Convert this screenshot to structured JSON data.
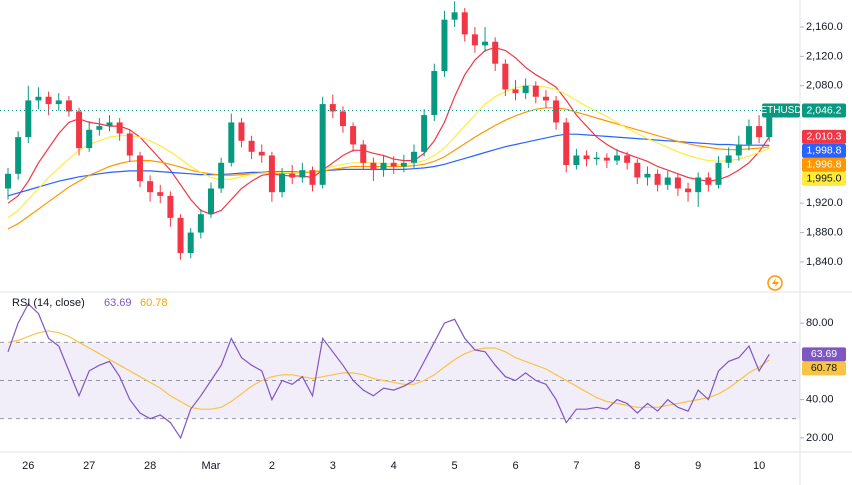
{
  "chart_data": [
    {
      "type": "candlestick",
      "symbol": "ETHUSD",
      "last_label": "2,046.2",
      "up_color": "#089981",
      "down_color": "#f23645",
      "categories": [
        null,
        null,
        "26",
        null,
        null,
        null,
        null,
        null,
        "27",
        null,
        null,
        null,
        null,
        null,
        "28",
        null,
        null,
        null,
        null,
        null,
        "Mar",
        null,
        null,
        null,
        null,
        null,
        "2",
        null,
        null,
        null,
        null,
        null,
        "3",
        null,
        null,
        null,
        null,
        null,
        "4",
        null,
        null,
        null,
        null,
        null,
        "5",
        null,
        null,
        null,
        null,
        null,
        "6",
        null,
        null,
        null,
        null,
        null,
        "7",
        null,
        null,
        null,
        null,
        null,
        "8",
        null,
        null,
        null,
        null,
        null,
        "9",
        null,
        null,
        null,
        null,
        null,
        "10",
        null
      ],
      "open": [
        1940,
        1960,
        2010,
        2060,
        2065,
        2055,
        2060,
        2045,
        1995,
        2020,
        2025,
        2030,
        2015,
        1985,
        1950,
        1935,
        1930,
        1900,
        1852,
        1880,
        1905,
        1940,
        1975,
        2030,
        2005,
        1990,
        1985,
        1935,
        1960,
        1955,
        1965,
        1945,
        2055,
        2045,
        2025,
        2000,
        1975,
        1965,
        1975,
        1970,
        1975,
        1990,
        2040,
        2100,
        2170,
        2180,
        2150,
        2135,
        2140,
        2110,
        2075,
        2070,
        2080,
        2065,
        2060,
        2030,
        1972,
        1985,
        1980,
        1982,
        1978,
        1985,
        1975,
        1955,
        1960,
        1945,
        1955,
        1940,
        1935,
        1955,
        1945,
        1975,
        1985,
        2000,
        2025,
        2010
      ],
      "high": [
        1968,
        2018,
        2080,
        2078,
        2072,
        2070,
        2066,
        2050,
        2032,
        2036,
        2040,
        2036,
        2020,
        1990,
        1958,
        1945,
        1936,
        1905,
        1886,
        1912,
        1948,
        1982,
        2042,
        2036,
        2012,
        2000,
        1990,
        1968,
        1972,
        1975,
        1970,
        2065,
        2068,
        2052,
        2030,
        2006,
        1982,
        1985,
        1984,
        1986,
        2000,
        2048,
        2110,
        2182,
        2195,
        2186,
        2160,
        2160,
        2146,
        2116,
        2088,
        2090,
        2086,
        2074,
        2066,
        2036,
        1994,
        1992,
        1990,
        1988,
        1994,
        1990,
        1980,
        1970,
        1966,
        1964,
        1960,
        1948,
        1962,
        1962,
        1984,
        1996,
        2012,
        2034,
        2040,
        2050
      ],
      "low": [
        1925,
        1952,
        2002,
        2048,
        2040,
        2046,
        2038,
        1985,
        1990,
        2012,
        2018,
        2005,
        1976,
        1942,
        1922,
        1920,
        1888,
        1843,
        1845,
        1872,
        1900,
        1934,
        1970,
        1996,
        1980,
        1975,
        1922,
        1928,
        1946,
        1948,
        1936,
        1940,
        2036,
        2016,
        1990,
        1966,
        1950,
        1956,
        1960,
        1962,
        1968,
        1984,
        2032,
        2092,
        2160,
        2140,
        2125,
        2126,
        2100,
        2066,
        2060,
        2062,
        2056,
        2050,
        2020,
        1962,
        1966,
        1970,
        1972,
        1968,
        1972,
        1966,
        1946,
        1944,
        1936,
        1938,
        1930,
        1922,
        1915,
        1936,
        1940,
        1968,
        1978,
        1992,
        2002,
        2004
      ],
      "close": [
        1960,
        2010,
        2060,
        2065,
        2055,
        2060,
        2045,
        1995,
        2020,
        2025,
        2030,
        2015,
        1985,
        1950,
        1935,
        1930,
        1900,
        1852,
        1880,
        1905,
        1940,
        1975,
        2030,
        2005,
        1990,
        1985,
        1935,
        1960,
        1955,
        1965,
        1945,
        2055,
        2045,
        2025,
        2000,
        1975,
        1965,
        1975,
        1970,
        1975,
        1990,
        2040,
        2100,
        2170,
        2180,
        2150,
        2135,
        2140,
        2110,
        2075,
        2070,
        2080,
        2065,
        2060,
        2030,
        1972,
        1985,
        1980,
        1982,
        1978,
        1985,
        1975,
        1955,
        1960,
        1945,
        1955,
        1940,
        1935,
        1955,
        1945,
        1975,
        1985,
        2000,
        2025,
        2010,
        2046.2
      ],
      "series": [
        {
          "color": "#f23645",
          "last_label": "2,010.3",
          "values": [
            1920,
            1930,
            1950,
            1975,
            1995,
            2015,
            2030,
            2035,
            2030,
            2028,
            2025,
            2025,
            2020,
            2010,
            1995,
            1980,
            1965,
            1945,
            1925,
            1910,
            1905,
            1910,
            1925,
            1940,
            1950,
            1958,
            1960,
            1958,
            1957,
            1957,
            1955,
            1965,
            1975,
            1985,
            1992,
            1992,
            1988,
            1985,
            1980,
            1978,
            1978,
            1988,
            2005,
            2030,
            2065,
            2095,
            2115,
            2128,
            2132,
            2128,
            2118,
            2105,
            2095,
            2087,
            2078,
            2060,
            2040,
            2025,
            2010,
            2000,
            1992,
            1987,
            1982,
            1977,
            1970,
            1965,
            1960,
            1955,
            1952,
            1950,
            1952,
            1957,
            1965,
            1975,
            1990,
            2010.3
          ]
        },
        {
          "color": "#2962ff",
          "last_label": "1,998.8",
          "values": [
            1930,
            1934,
            1938,
            1942,
            1946,
            1950,
            1953,
            1956,
            1958,
            1960,
            1962,
            1963,
            1964,
            1964,
            1964,
            1963,
            1962,
            1961,
            1960,
            1959,
            1959,
            1959,
            1960,
            1961,
            1962,
            1962,
            1963,
            1963,
            1963,
            1963,
            1963,
            1964,
            1965,
            1966,
            1966,
            1966,
            1966,
            1966,
            1966,
            1966,
            1967,
            1968,
            1970,
            1973,
            1977,
            1981,
            1985,
            1989,
            1993,
            1997,
            2000,
            2003,
            2006,
            2009,
            2012,
            2014,
            2014,
            2013,
            2012,
            2011,
            2010,
            2009,
            2008,
            2007,
            2006,
            2005,
            2004,
            2003,
            2002,
            2001,
            2000,
            2000,
            1999,
            1999,
            1999,
            1998.8
          ]
        },
        {
          "color": "#ff9800",
          "last_label": "1,996.8",
          "values": [
            1885,
            1892,
            1902,
            1912,
            1922,
            1932,
            1942,
            1950,
            1958,
            1964,
            1970,
            1974,
            1977,
            1978,
            1978,
            1976,
            1973,
            1969,
            1965,
            1962,
            1960,
            1958,
            1958,
            1959,
            1960,
            1961,
            1961,
            1961,
            1961,
            1962,
            1962,
            1964,
            1966,
            1968,
            1970,
            1970,
            1970,
            1970,
            1970,
            1970,
            1971,
            1973,
            1977,
            1983,
            1992,
            2001,
            2010,
            2018,
            2026,
            2033,
            2039,
            2044,
            2048,
            2050,
            2050,
            2048,
            2044,
            2040,
            2036,
            2032,
            2028,
            2024,
            2020,
            2016,
            2012,
            2008,
            2004,
            2001,
            1998,
            1996,
            1994,
            1993,
            1993,
            1994,
            1995,
            1996.8
          ]
        },
        {
          "color": "#ffeb3b",
          "last_label": "1,995.0",
          "values": [
            1900,
            1910,
            1925,
            1940,
            1955,
            1968,
            1980,
            1992,
            2000,
            2005,
            2010,
            2012,
            2012,
            2010,
            2005,
            1998,
            1990,
            1980,
            1970,
            1962,
            1955,
            1952,
            1953,
            1956,
            1959,
            1961,
            1962,
            1962,
            1962,
            1963,
            1963,
            1966,
            1970,
            1973,
            1975,
            1975,
            1975,
            1974,
            1973,
            1973,
            1974,
            1978,
            1985,
            1995,
            2010,
            2025,
            2040,
            2055,
            2065,
            2072,
            2077,
            2080,
            2080,
            2078,
            2075,
            2068,
            2060,
            2052,
            2045,
            2038,
            2030,
            2022,
            2015,
            2008,
            2002,
            1996,
            1990,
            1985,
            1981,
            1978,
            1977,
            1978,
            1980,
            1984,
            1989,
            1995.0
          ]
        }
      ],
      "ylim": [
        1799,
        2196.8
      ],
      "yticks": [
        {
          "value": 2160,
          "label": "2,160.0"
        },
        {
          "value": 2120,
          "label": "2,120.0"
        },
        {
          "value": 2080,
          "label": "2,080.0"
        },
        {
          "value": 1920,
          "label": "1,920.0"
        },
        {
          "value": 1880,
          "label": "1,880.0"
        },
        {
          "value": 1840,
          "label": "1,840.0"
        }
      ]
    },
    {
      "type": "line",
      "title": "RSI (14, close)",
      "series": [
        {
          "color": "#7e57c2",
          "last_label": "63.69",
          "values": [
            65,
            80,
            90,
            85,
            72,
            68,
            55,
            42,
            55,
            58,
            60,
            52,
            40,
            33,
            30,
            32,
            28,
            20,
            35,
            42,
            50,
            58,
            72,
            62,
            58,
            55,
            40,
            50,
            48,
            52,
            42,
            72,
            65,
            58,
            50,
            45,
            42,
            46,
            45,
            47,
            50,
            60,
            70,
            80,
            82,
            72,
            66,
            65,
            58,
            52,
            50,
            54,
            50,
            48,
            40,
            28,
            35,
            35,
            36,
            35,
            40,
            38,
            33,
            38,
            34,
            40,
            36,
            34,
            45,
            40,
            55,
            60,
            62,
            68,
            55,
            63.69
          ]
        },
        {
          "color": "#f7c443",
          "last_label": "60.78",
          "values": [
            70,
            71,
            73,
            75,
            76,
            75,
            73,
            70,
            67,
            64,
            61,
            58,
            55,
            52,
            49,
            46,
            42,
            39,
            36,
            35,
            35,
            36,
            39,
            43,
            47,
            50,
            52,
            53,
            53,
            52,
            51,
            52,
            53,
            54,
            54,
            53,
            51,
            50,
            49,
            48,
            48,
            50,
            53,
            57,
            61,
            64,
            66,
            67,
            67,
            65,
            62,
            60,
            58,
            56,
            53,
            50,
            47,
            44,
            41,
            39,
            38,
            37,
            36,
            36,
            36,
            37,
            38,
            39,
            40,
            41,
            43,
            46,
            50,
            54,
            57,
            60.78
          ]
        }
      ],
      "bands": [
        70,
        50,
        30
      ],
      "ylim": [
        12.6,
        94.2
      ],
      "yticks": [
        {
          "value": 80,
          "label": "80.00"
        },
        {
          "value": 40,
          "label": "40.00"
        },
        {
          "value": 20,
          "label": "20.00"
        }
      ]
    }
  ]
}
